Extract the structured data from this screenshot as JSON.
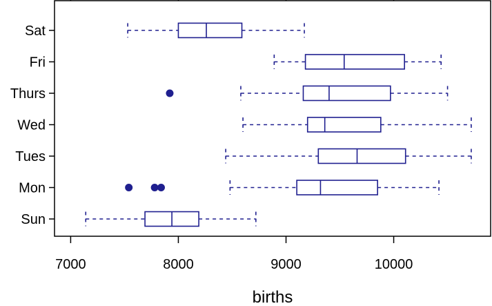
{
  "chart_data": {
    "type": "boxplot",
    "xlabel": "births",
    "xlim": [
      6850,
      10900
    ],
    "x_ticks": [
      7000,
      8000,
      9000,
      10000
    ],
    "x_tick_labels": [
      "7000",
      "8000",
      "9000",
      "10000"
    ],
    "color": "#1f1f8f",
    "grid": false,
    "legend": "none",
    "categories": [
      "Sat",
      "Fri",
      "Thurs",
      "Wed",
      "Tues",
      "Mon",
      "Sun"
    ],
    "boxes": [
      {
        "category": "Sat",
        "whisker_low": 7530,
        "q1": 8000,
        "median": 8260,
        "q3": 8590,
        "whisker_high": 9170,
        "outliers": []
      },
      {
        "category": "Fri",
        "whisker_low": 8890,
        "q1": 9180,
        "median": 9540,
        "q3": 10100,
        "whisker_high": 10440,
        "outliers": []
      },
      {
        "category": "Thurs",
        "whisker_low": 8580,
        "q1": 9160,
        "median": 9400,
        "q3": 9970,
        "whisker_high": 10500,
        "outliers": [
          7920
        ]
      },
      {
        "category": "Wed",
        "whisker_low": 8600,
        "q1": 9200,
        "median": 9360,
        "q3": 9880,
        "whisker_high": 10720,
        "outliers": []
      },
      {
        "category": "Tues",
        "whisker_low": 8440,
        "q1": 9300,
        "median": 9660,
        "q3": 10110,
        "whisker_high": 10720,
        "outliers": []
      },
      {
        "category": "Mon",
        "whisker_low": 8480,
        "q1": 9100,
        "median": 9320,
        "q3": 9850,
        "whisker_high": 10420,
        "outliers": [
          7540,
          7780,
          7840
        ]
      },
      {
        "category": "Sun",
        "whisker_low": 7140,
        "q1": 7690,
        "median": 7940,
        "q3": 8190,
        "whisker_high": 8720,
        "outliers": []
      }
    ]
  }
}
